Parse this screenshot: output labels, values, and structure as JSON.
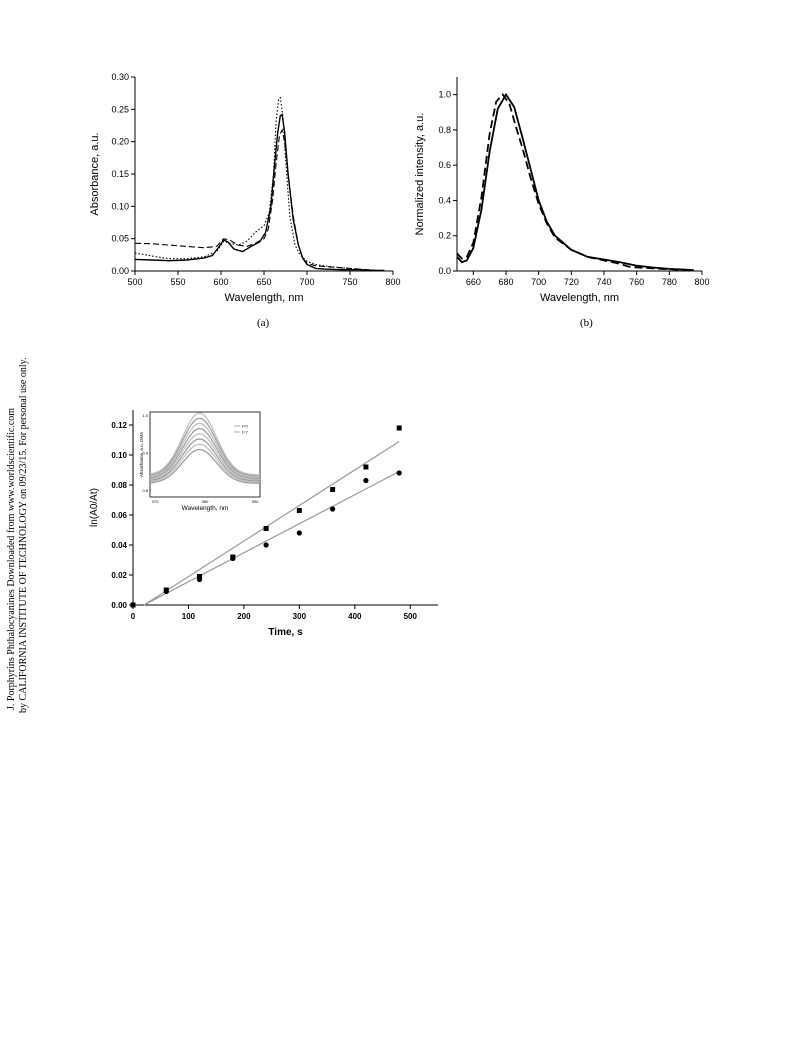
{
  "side_note": {
    "line1": "J. Porphyrins Phthalocyanines Downloaded from www.worldscientific.com",
    "line2": "by CALIFORNIA INSTITUTE OF TECHNOLOGY on 09/23/15. For personal use only."
  },
  "chart_data": [
    {
      "id": "a",
      "type": "line",
      "caption": "(a)",
      "xlabel": "Wavelength, nm",
      "ylabel": "Absorbance, a.u.",
      "xlim": [
        500,
        800
      ],
      "ylim": [
        0,
        0.3
      ],
      "xticks": [
        500,
        550,
        600,
        650,
        700,
        750,
        800
      ],
      "yticks": [
        0.0,
        0.05,
        0.1,
        0.15,
        0.2,
        0.25,
        0.3
      ],
      "yticks_text": [
        "0.00",
        "0.05",
        "0.10",
        "0.15",
        "0.20",
        "0.25",
        "0.30"
      ],
      "series": [
        {
          "style": "solid",
          "x": [
            500,
            520,
            540,
            560,
            580,
            590,
            598,
            603,
            608,
            615,
            625,
            635,
            645,
            652,
            658,
            662,
            666,
            669,
            671,
            674,
            678,
            684,
            690,
            695,
            700,
            710,
            720,
            740,
            760,
            780,
            790
          ],
          "y": [
            0.018,
            0.017,
            0.016,
            0.017,
            0.02,
            0.024,
            0.038,
            0.048,
            0.045,
            0.034,
            0.03,
            0.038,
            0.045,
            0.06,
            0.1,
            0.16,
            0.215,
            0.24,
            0.242,
            0.215,
            0.15,
            0.08,
            0.04,
            0.02,
            0.01,
            0.004,
            0.003,
            0.002,
            0.002,
            0.001,
            0.001
          ]
        },
        {
          "style": "dashed",
          "x": [
            500,
            520,
            540,
            560,
            580,
            595,
            603,
            610,
            620,
            630,
            640,
            650,
            655,
            660,
            664,
            668,
            671,
            674,
            678,
            684,
            690,
            695,
            700,
            710,
            720,
            740,
            760,
            780,
            790
          ],
          "y": [
            0.043,
            0.042,
            0.04,
            0.038,
            0.036,
            0.038,
            0.05,
            0.048,
            0.04,
            0.038,
            0.043,
            0.05,
            0.065,
            0.11,
            0.165,
            0.21,
            0.218,
            0.2,
            0.15,
            0.085,
            0.04,
            0.02,
            0.012,
            0.008,
            0.007,
            0.005,
            0.003,
            0.001,
            0.001
          ]
        },
        {
          "style": "dotted",
          "x": [
            500,
            520,
            540,
            560,
            580,
            595,
            603,
            610,
            620,
            630,
            640,
            650,
            656,
            661,
            664,
            667,
            669,
            672,
            675,
            680,
            686,
            692,
            700,
            710,
            720,
            740,
            760,
            780,
            790
          ],
          "y": [
            0.028,
            0.023,
            0.019,
            0.019,
            0.022,
            0.03,
            0.046,
            0.043,
            0.04,
            0.046,
            0.06,
            0.07,
            0.09,
            0.15,
            0.23,
            0.265,
            0.268,
            0.24,
            0.175,
            0.085,
            0.04,
            0.025,
            0.015,
            0.01,
            0.008,
            0.005,
            0.003,
            0.001,
            0.001
          ]
        }
      ]
    },
    {
      "id": "b",
      "type": "line",
      "caption": "(b)",
      "xlabel": "Wavelength, nm",
      "ylabel": "Normalized intensity, a.u.",
      "xlim": [
        650,
        800
      ],
      "ylim": [
        0,
        1.1
      ],
      "xticks": [
        660,
        680,
        700,
        720,
        740,
        760,
        780,
        800
      ],
      "yticks": [
        0.0,
        0.2,
        0.4,
        0.6,
        0.8,
        1.0
      ],
      "yticks_text": [
        "0.0",
        "0.2",
        "0.4",
        "0.6",
        "0.8",
        "1.0"
      ],
      "series": [
        {
          "style": "solid",
          "x": [
            650,
            653,
            656,
            660,
            665,
            670,
            675,
            680,
            685,
            690,
            695,
            700,
            705,
            710,
            720,
            730,
            740,
            750,
            760,
            770,
            780,
            790,
            795
          ],
          "y": [
            0.08,
            0.05,
            0.06,
            0.13,
            0.35,
            0.68,
            0.92,
            1.0,
            0.93,
            0.76,
            0.58,
            0.4,
            0.28,
            0.2,
            0.12,
            0.08,
            0.065,
            0.05,
            0.03,
            0.02,
            0.012,
            0.008,
            0.005
          ]
        },
        {
          "style": "dashed",
          "x": [
            650,
            653,
            656,
            660,
            665,
            670,
            674,
            678,
            682,
            686,
            690,
            695,
            700,
            705,
            710,
            720,
            730,
            740,
            750,
            755,
            760,
            770,
            780,
            790
          ],
          "y": [
            0.1,
            0.07,
            0.08,
            0.16,
            0.42,
            0.78,
            0.96,
            1.0,
            0.95,
            0.82,
            0.7,
            0.53,
            0.38,
            0.27,
            0.19,
            0.12,
            0.08,
            0.06,
            0.04,
            0.025,
            0.02,
            0.015,
            0.01,
            0.005
          ]
        }
      ]
    },
    {
      "id": "c",
      "type": "scatter",
      "xlabel": "Time, s",
      "ylabel": "ln(A0/At)",
      "xlim": [
        0,
        550
      ],
      "ylim": [
        0,
        0.13
      ],
      "xticks": [
        0,
        100,
        200,
        300,
        400,
        500
      ],
      "yticks": [
        0.0,
        0.02,
        0.04,
        0.06,
        0.08,
        0.1,
        0.12
      ],
      "yticks_text": [
        "0.00",
        "0.02",
        "0.04",
        "0.06",
        "0.08",
        "0.10",
        "0.12"
      ],
      "series": [
        {
          "marker": "square",
          "x": [
            0,
            60,
            120,
            180,
            240,
            300,
            360,
            420,
            480
          ],
          "y": [
            0.0,
            0.01,
            0.019,
            0.032,
            0.051,
            0.063,
            0.077,
            0.092,
            0.118
          ],
          "fit": [
            [
              20,
              0.0
            ],
            [
              480,
              0.109
            ]
          ]
        },
        {
          "marker": "circle",
          "x": [
            0,
            60,
            120,
            180,
            240,
            300,
            360,
            420,
            480
          ],
          "y": [
            0.0,
            0.009,
            0.017,
            0.031,
            0.04,
            0.048,
            0.064,
            0.083,
            0.088
          ],
          "fit": [
            [
              20,
              0.0
            ],
            [
              480,
              0.089
            ]
          ]
        }
      ],
      "inset": {
        "xlabel": "Wavelength, nm",
        "ylabel": "Absorbance, a.u. DMA",
        "xticks_text": [
          "370",
          "380",
          "390"
        ],
        "yticks_text": [
          "0.8",
          "0.9",
          "1.0"
        ],
        "legend": [
          "t=0",
          "t=7"
        ],
        "curve_count": 8
      }
    }
  ]
}
